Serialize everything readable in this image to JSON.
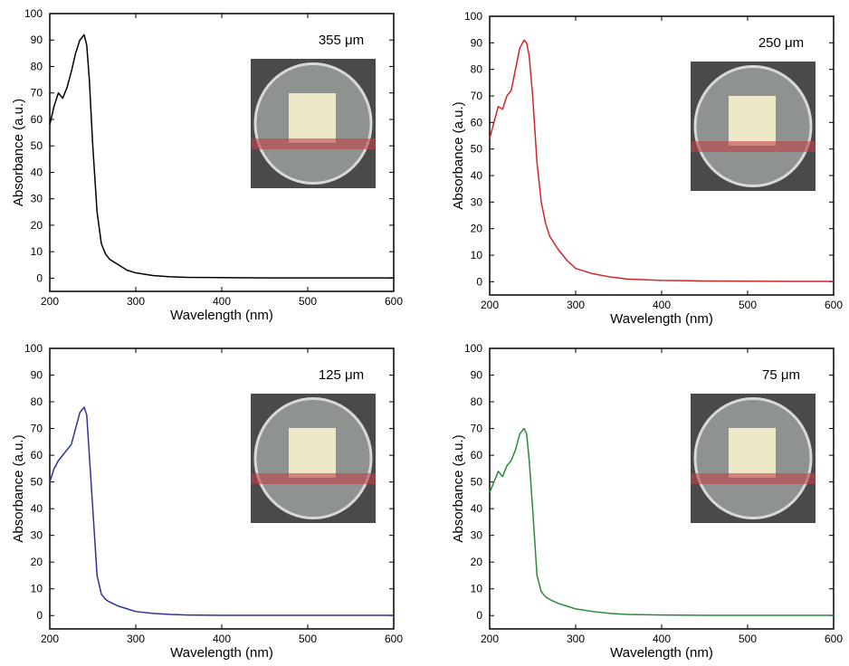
{
  "chart_data": [
    {
      "type": "line",
      "annotation": "355 μm",
      "xlabel": "Wavelength (nm)",
      "ylabel": "Absorbance (a.u.)",
      "xlim": [
        200,
        600
      ],
      "ylim": [
        -5,
        100
      ],
      "xticks": [
        200,
        300,
        400,
        500,
        600
      ],
      "yticks": [
        0,
        10,
        20,
        30,
        40,
        50,
        60,
        70,
        80,
        90,
        100
      ],
      "x": [
        200,
        205,
        210,
        215,
        220,
        225,
        230,
        235,
        240,
        243,
        246,
        250,
        255,
        260,
        265,
        270,
        280,
        290,
        300,
        320,
        340,
        360,
        400,
        450,
        500,
        550,
        600
      ],
      "series": [
        {
          "name": "355 μm",
          "color": "#000000",
          "values": [
            58,
            65,
            70,
            68,
            72,
            78,
            85,
            90,
            92,
            88,
            75,
            50,
            25,
            13,
            9,
            7,
            5,
            3,
            2,
            1,
            0.5,
            0.3,
            0.2,
            0.1,
            0.1,
            0.1,
            0.1
          ]
        }
      ]
    },
    {
      "type": "line",
      "annotation": "250 μm",
      "xlabel": "Wavelength (nm)",
      "ylabel": "Absorbance (a.u.)",
      "xlim": [
        200,
        600
      ],
      "ylim": [
        -5,
        100
      ],
      "xticks": [
        200,
        300,
        400,
        500,
        600
      ],
      "yticks": [
        0,
        10,
        20,
        30,
        40,
        50,
        60,
        70,
        80,
        90,
        100
      ],
      "x": [
        200,
        205,
        210,
        215,
        220,
        225,
        230,
        235,
        240,
        243,
        246,
        250,
        255,
        260,
        265,
        270,
        280,
        290,
        300,
        320,
        340,
        360,
        400,
        450,
        500,
        550,
        600
      ],
      "series": [
        {
          "name": "250 μm",
          "color": "#d0262a",
          "values": [
            54,
            60,
            66,
            65,
            70,
            72,
            80,
            88,
            91,
            90,
            85,
            70,
            45,
            30,
            22,
            17,
            12,
            8,
            5,
            3,
            1.8,
            1,
            0.5,
            0.3,
            0.2,
            0.1,
            0.1
          ]
        }
      ]
    },
    {
      "type": "line",
      "annotation": "125 μm",
      "xlabel": "Wavelength (nm)",
      "ylabel": "Absorbance (a.u.)",
      "xlim": [
        200,
        600
      ],
      "ylim": [
        -5,
        100
      ],
      "xticks": [
        200,
        300,
        400,
        500,
        600
      ],
      "yticks": [
        0,
        10,
        20,
        30,
        40,
        50,
        60,
        70,
        80,
        90,
        100
      ],
      "x": [
        200,
        205,
        210,
        215,
        220,
        225,
        230,
        235,
        240,
        243,
        246,
        250,
        255,
        260,
        265,
        270,
        280,
        290,
        300,
        320,
        340,
        360,
        400,
        450,
        500,
        550,
        600
      ],
      "series": [
        {
          "name": "125 μm",
          "color": "#2b3499",
          "values": [
            50,
            55,
            58,
            60,
            62,
            64,
            70,
            76,
            78,
            75,
            60,
            40,
            15,
            8,
            6,
            5,
            3.5,
            2.5,
            1.5,
            0.8,
            0.4,
            0.2,
            0.1,
            0.1,
            0.1,
            0.1,
            0.1
          ]
        }
      ]
    },
    {
      "type": "line",
      "annotation": "75 μm",
      "xlabel": "Wavelength (nm)",
      "ylabel": "Absorbance (a.u.)",
      "xlim": [
        200,
        600
      ],
      "ylim": [
        -5,
        100
      ],
      "xticks": [
        200,
        300,
        400,
        500,
        600
      ],
      "yticks": [
        0,
        10,
        20,
        30,
        40,
        50,
        60,
        70,
        80,
        90,
        100
      ],
      "x": [
        200,
        205,
        210,
        215,
        220,
        225,
        230,
        235,
        240,
        243,
        246,
        250,
        255,
        260,
        265,
        270,
        280,
        290,
        300,
        320,
        340,
        360,
        400,
        450,
        500,
        550,
        600
      ],
      "series": [
        {
          "name": "75 μm",
          "color": "#2a8a38",
          "values": [
            46,
            50,
            54,
            52,
            56,
            58,
            62,
            68,
            70,
            68,
            58,
            40,
            15,
            9,
            7,
            6,
            4.5,
            3.5,
            2.5,
            1.5,
            0.8,
            0.4,
            0.2,
            0.1,
            0.1,
            0.1,
            0.1
          ]
        }
      ]
    }
  ]
}
